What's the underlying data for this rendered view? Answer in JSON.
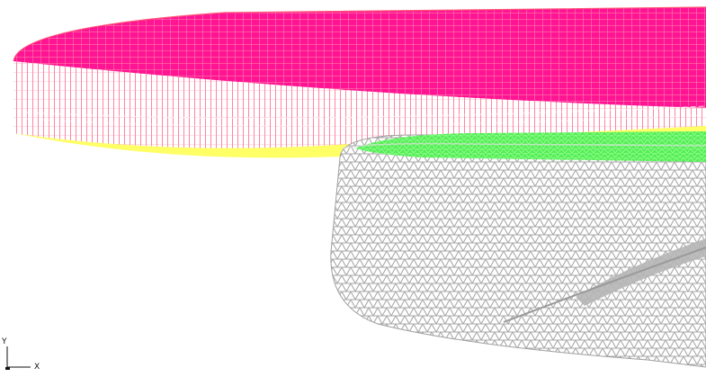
{
  "viewport": {
    "background": "#ffffff"
  },
  "mesh": {
    "upper_disc_color": "#ff1493",
    "upper_disc_grid_color": "#ff6b8a",
    "upper_disc_bottom_color": "#ffff66",
    "lower_body_color": "#a8a8a8",
    "lower_body_top_color": "#66ff66"
  },
  "axis_triad": {
    "y_label": "Y",
    "x_label": "X",
    "axis_color": "#111111"
  }
}
